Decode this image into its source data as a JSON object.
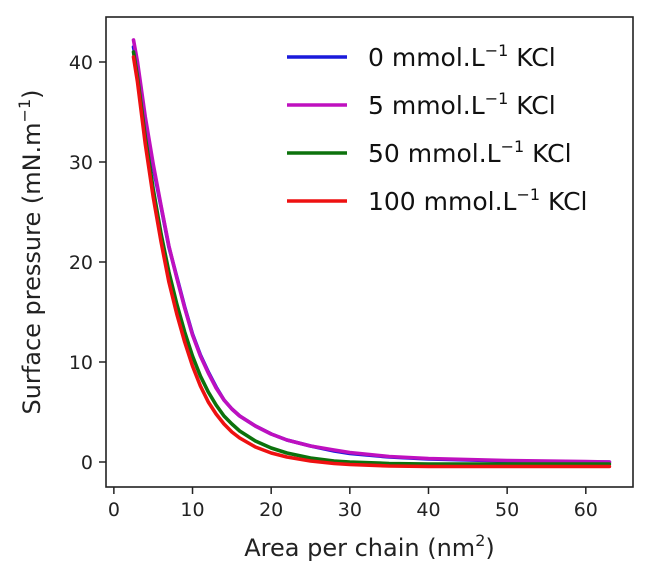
{
  "chart_data": {
    "type": "line",
    "xlabel": {
      "main": "Area per chain (nm",
      "sup": "2",
      "tail": ")"
    },
    "ylabel": {
      "main": "Surface pressure (mN.m",
      "sup": "−1",
      "tail": ")"
    },
    "xlim": [
      -1,
      66
    ],
    "ylim": [
      -2.5,
      44.5
    ],
    "xticks": [
      0,
      10,
      20,
      30,
      40,
      50,
      60
    ],
    "yticks": [
      0,
      10,
      20,
      30,
      40
    ],
    "grid": false,
    "legend_position": "upper-right",
    "series": [
      {
        "name": {
          "pre": "0 mmol.L",
          "sup": "−1",
          "post": " KCl"
        },
        "color": "#1a1adb",
        "x": [
          2.5,
          3,
          4,
          5,
          6,
          7,
          8,
          9,
          10,
          11,
          12,
          13,
          14,
          15,
          16,
          18,
          20,
          22,
          25,
          28,
          30,
          35,
          40,
          45,
          50,
          55,
          60,
          63
        ],
        "y": [
          41.5,
          39.5,
          34,
          29.5,
          25.5,
          21.5,
          18.5,
          15.5,
          12.8,
          10.7,
          9.0,
          7.5,
          6.2,
          5.3,
          4.6,
          3.6,
          2.8,
          2.2,
          1.6,
          1.1,
          0.85,
          0.5,
          0.3,
          0.2,
          0.1,
          0.05,
          0.0,
          0.0
        ]
      },
      {
        "name": {
          "pre": "5 mmol.L",
          "sup": "−1",
          "post": " KCl"
        },
        "color": "#bf10bf",
        "x": [
          2.5,
          3,
          4,
          5,
          6,
          7,
          8,
          9,
          10,
          11,
          12,
          13,
          14,
          15,
          16,
          18,
          20,
          22,
          25,
          28,
          30,
          35,
          40,
          45,
          50,
          55,
          60,
          63
        ],
        "y": [
          42.2,
          40.0,
          34.5,
          29.8,
          25.6,
          21.6,
          18.4,
          15.4,
          12.7,
          10.6,
          8.9,
          7.4,
          6.2,
          5.3,
          4.6,
          3.6,
          2.8,
          2.2,
          1.6,
          1.2,
          0.95,
          0.55,
          0.35,
          0.25,
          0.15,
          0.1,
          0.05,
          0.0
        ]
      },
      {
        "name": {
          "pre": "50 mmol.L",
          "sup": "−1",
          "post": " KCl"
        },
        "color": "#0c720c",
        "x": [
          2.5,
          3,
          4,
          5,
          6,
          7,
          8,
          9,
          10,
          11,
          12,
          13,
          14,
          15,
          16,
          18,
          20,
          22,
          25,
          28,
          30,
          35,
          40,
          45,
          50,
          55,
          60,
          63
        ],
        "y": [
          41.0,
          38.5,
          32.5,
          27.3,
          22.8,
          19.0,
          15.8,
          13.0,
          10.6,
          8.6,
          7.0,
          5.7,
          4.6,
          3.8,
          3.1,
          2.1,
          1.4,
          0.9,
          0.4,
          0.1,
          0.0,
          -0.15,
          -0.2,
          -0.2,
          -0.2,
          -0.2,
          -0.2,
          -0.2
        ]
      },
      {
        "name": {
          "pre": "100 mmol.L",
          "sup": "−1",
          "post": " KCl"
        },
        "color": "#ee1111",
        "x": [
          2.5,
          3,
          4,
          5,
          6,
          7,
          8,
          9,
          10,
          11,
          12,
          13,
          14,
          15,
          16,
          18,
          20,
          22,
          25,
          28,
          30,
          35,
          40,
          45,
          50,
          55,
          60,
          63
        ],
        "y": [
          40.5,
          38.0,
          31.8,
          26.5,
          22.0,
          18.0,
          14.8,
          12.0,
          9.6,
          7.6,
          6.0,
          4.8,
          3.8,
          3.0,
          2.4,
          1.5,
          0.9,
          0.5,
          0.1,
          -0.15,
          -0.25,
          -0.4,
          -0.45,
          -0.45,
          -0.45,
          -0.45,
          -0.45,
          -0.45
        ]
      }
    ]
  }
}
